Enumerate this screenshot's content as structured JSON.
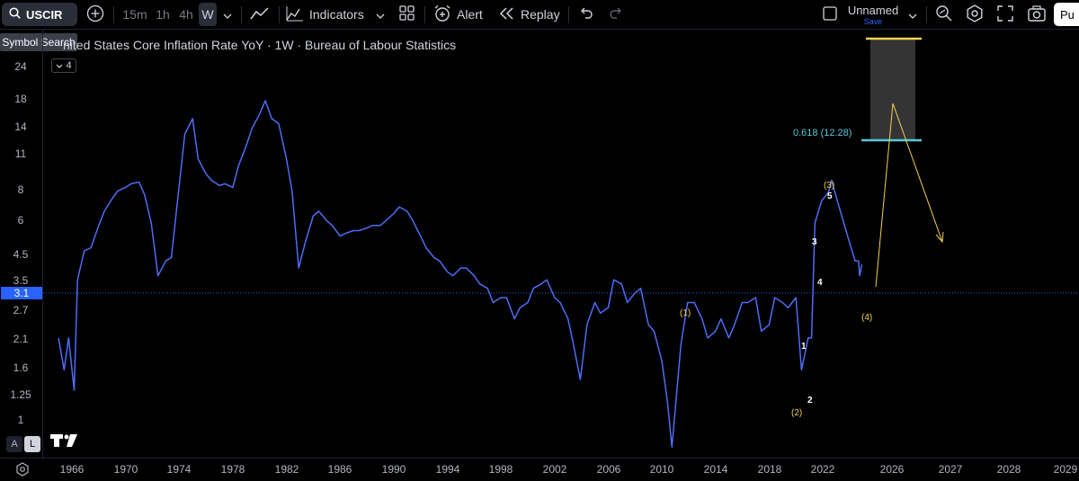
{
  "toolbar": {
    "symbol": "USCIR",
    "intervals": [
      "15m",
      "1h",
      "4h",
      "W"
    ],
    "active_interval": "W",
    "indicators_label": "Indicators",
    "alert_label": "Alert",
    "replay_label": "Replay",
    "layout_name": "Unnamed",
    "layout_save": "Save",
    "publish_label": "Pu"
  },
  "tooltip": "Symbol Search",
  "chart": {
    "title": "nited States Core Inflation Rate YoY · 1W · Bureau of Labour Statistics",
    "collapse_count": "4",
    "last_price": "3.1",
    "y_ticks": [
      "24",
      "18",
      "14",
      "11",
      "8",
      "6",
      "4.5",
      "3.5",
      "2.7",
      "2.1",
      "1.6",
      "1.25",
      "1"
    ],
    "x_ticks": [
      "1966",
      "1970",
      "1974",
      "1978",
      "1982",
      "1986",
      "1990",
      "1994",
      "1998",
      "2002",
      "2006",
      "2010",
      "2014",
      "2018",
      "2022",
      "2026",
      "2027",
      "2028",
      "2029"
    ],
    "fib_label": "0.618 (12.28)",
    "wave_labels": [
      "(1)",
      "(2)",
      "(3)",
      "(4)",
      "1",
      "2",
      "3",
      "4",
      "5"
    ],
    "scale_buttons": [
      "A",
      "L"
    ],
    "line_color": "#4e6df5",
    "fib_gold": "#f2d34f",
    "fib_teal": "#5ac8d8"
  },
  "chart_data": {
    "type": "line",
    "title": "",
    "y_scale": "log",
    "series": [
      {
        "values": [
          [
            "1965-01",
            1.6
          ],
          [
            "1965-06",
            1.2
          ],
          [
            "1965-10",
            1.6
          ],
          [
            "1966-03",
            1.0
          ],
          [
            "1966-06",
            2.7
          ],
          [
            "1966-12",
            3.5
          ],
          [
            "1967-06",
            3.6
          ],
          [
            "1968-01",
            4.4
          ],
          [
            "1968-06",
            5.0
          ],
          [
            "1969-01",
            5.6
          ],
          [
            "1969-06",
            6.0
          ],
          [
            "1970-01",
            6.2
          ],
          [
            "1970-06",
            6.4
          ],
          [
            "1971-01",
            6.5
          ],
          [
            "1971-06",
            5.8
          ],
          [
            "1971-12",
            4.5
          ],
          [
            "1972-06",
            2.8
          ],
          [
            "1973-01",
            3.2
          ],
          [
            "1973-06",
            3.3
          ],
          [
            "1974-01",
            6.3
          ],
          [
            "1974-06",
            10.0
          ],
          [
            "1975-01",
            11.5
          ],
          [
            "1975-06",
            8.0
          ],
          [
            "1976-01",
            7.0
          ],
          [
            "1976-06",
            6.6
          ],
          [
            "1977-01",
            6.3
          ],
          [
            "1977-06",
            6.4
          ],
          [
            "1978-01",
            6.2
          ],
          [
            "1978-06",
            7.5
          ],
          [
            "1979-01",
            9.0
          ],
          [
            "1979-06",
            10.5
          ],
          [
            "1980-01",
            12.0
          ],
          [
            "1980-06",
            13.5
          ],
          [
            "1980-12",
            11.5
          ],
          [
            "1981-06",
            11.0
          ],
          [
            "1982-01",
            8.0
          ],
          [
            "1982-06",
            6.0
          ],
          [
            "1982-12",
            3.0
          ],
          [
            "1983-06",
            3.8
          ],
          [
            "1984-01",
            4.8
          ],
          [
            "1984-06",
            5.0
          ],
          [
            "1985-01",
            4.6
          ],
          [
            "1985-06",
            4.4
          ],
          [
            "1986-01",
            4.0
          ],
          [
            "1986-06",
            4.1
          ],
          [
            "1987-01",
            4.2
          ],
          [
            "1987-06",
            4.2
          ],
          [
            "1988-01",
            4.3
          ],
          [
            "1988-06",
            4.4
          ],
          [
            "1989-01",
            4.4
          ],
          [
            "1989-06",
            4.6
          ],
          [
            "1990-01",
            4.9
          ],
          [
            "1990-06",
            5.2
          ],
          [
            "1991-01",
            5.0
          ],
          [
            "1991-06",
            4.6
          ],
          [
            "1992-01",
            4.0
          ],
          [
            "1992-06",
            3.6
          ],
          [
            "1993-01",
            3.3
          ],
          [
            "1993-06",
            3.2
          ],
          [
            "1994-01",
            2.9
          ],
          [
            "1994-06",
            2.8
          ],
          [
            "1995-01",
            3.0
          ],
          [
            "1995-06",
            3.0
          ],
          [
            "1996-01",
            2.8
          ],
          [
            "1996-06",
            2.6
          ],
          [
            "1997-01",
            2.5
          ],
          [
            "1997-06",
            2.2
          ],
          [
            "1998-01",
            2.3
          ],
          [
            "1998-06",
            2.3
          ],
          [
            "1999-01",
            1.9
          ],
          [
            "1999-06",
            2.1
          ],
          [
            "2000-01",
            2.2
          ],
          [
            "2000-06",
            2.5
          ],
          [
            "2001-01",
            2.6
          ],
          [
            "2001-06",
            2.7
          ],
          [
            "2002-01",
            2.3
          ],
          [
            "2002-06",
            2.2
          ],
          [
            "2003-01",
            1.9
          ],
          [
            "2003-06",
            1.5
          ],
          [
            "2003-12",
            1.1
          ],
          [
            "2004-06",
            1.8
          ],
          [
            "2005-01",
            2.2
          ],
          [
            "2005-06",
            2.0
          ],
          [
            "2006-01",
            2.1
          ],
          [
            "2006-06",
            2.7
          ],
          [
            "2007-01",
            2.6
          ],
          [
            "2007-06",
            2.2
          ],
          [
            "2008-01",
            2.4
          ],
          [
            "2008-06",
            2.5
          ],
          [
            "2009-01",
            1.8
          ],
          [
            "2009-06",
            1.7
          ],
          [
            "2010-01",
            1.3
          ],
          [
            "2010-06",
            0.9
          ],
          [
            "2010-10",
            0.6
          ],
          [
            "2011-06",
            1.5
          ],
          [
            "2011-12",
            2.2
          ],
          [
            "2012-06",
            2.2
          ],
          [
            "2013-01",
            1.9
          ],
          [
            "2013-06",
            1.6
          ],
          [
            "2014-01",
            1.7
          ],
          [
            "2014-06",
            1.9
          ],
          [
            "2015-01",
            1.6
          ],
          [
            "2015-06",
            1.8
          ],
          [
            "2016-01",
            2.2
          ],
          [
            "2016-06",
            2.2
          ],
          [
            "2017-01",
            2.3
          ],
          [
            "2017-06",
            1.7
          ],
          [
            "2018-01",
            1.8
          ],
          [
            "2018-06",
            2.3
          ],
          [
            "2019-01",
            2.2
          ],
          [
            "2019-06",
            2.1
          ],
          [
            "2020-01",
            2.3
          ],
          [
            "2020-06",
            1.2
          ],
          [
            "2020-12",
            1.6
          ],
          [
            "2021-03",
            1.6
          ],
          [
            "2021-06",
            4.5
          ],
          [
            "2021-12",
            5.5
          ],
          [
            "2022-06",
            5.9
          ],
          [
            "2022-09",
            6.6
          ],
          [
            "2023-01",
            5.7
          ],
          [
            "2023-06",
            4.8
          ],
          [
            "2023-12",
            3.9
          ],
          [
            "2024-06",
            3.2
          ],
          [
            "2024-09",
            3.2
          ],
          [
            "2024-10",
            2.8
          ],
          [
            "2024-12",
            3.1
          ]
        ]
      }
    ],
    "annotations": [
      {
        "label": "0.618 (12.28)",
        "y": 12.28
      },
      {
        "label": "(1)",
        "x": "2011",
        "y": 2.2
      },
      {
        "label": "(2)",
        "x": "2020",
        "y": 1.2
      },
      {
        "label": "(3)",
        "x": "2022",
        "y": 6.6
      },
      {
        "label": "(4)",
        "x": "2024",
        "y": 2.8
      }
    ],
    "y_ticks": [
      24,
      18,
      14,
      11,
      8,
      6,
      4.5,
      3.5,
      2.7,
      2.1,
      1.6,
      1.25,
      1
    ],
    "x_ticks": [
      "1966",
      "1970",
      "1974",
      "1978",
      "1982",
      "1986",
      "1990",
      "1994",
      "1998",
      "2002",
      "2006",
      "2010",
      "2014",
      "2018",
      "2022",
      "2026",
      "2027",
      "2028",
      "2029"
    ]
  }
}
